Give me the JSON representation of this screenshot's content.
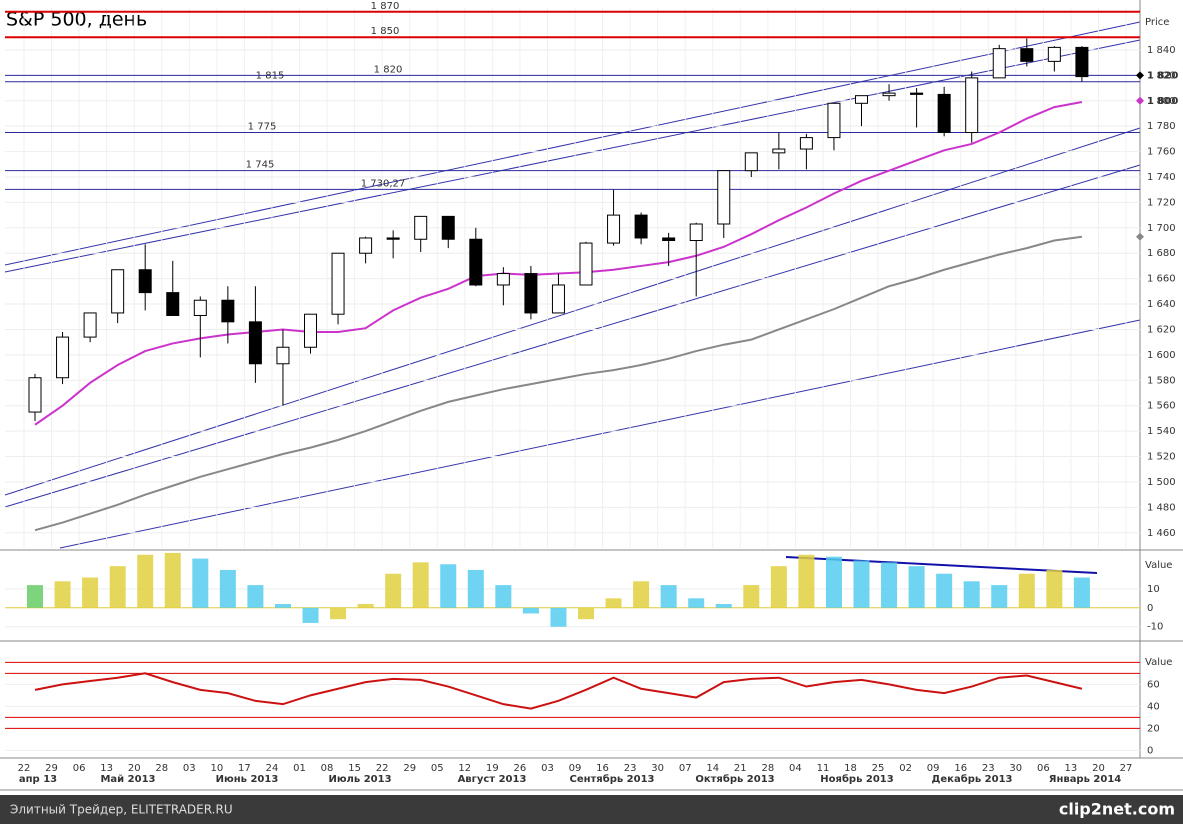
{
  "title": "S&P 500, день",
  "footer": {
    "source": "Элитный Трейдер, ELITETRADER.RU",
    "logo": "clip2net.com"
  },
  "chart_data": [
    {
      "type": "candlestick",
      "axis_label": "Price",
      "categories": [
        "22",
        "29",
        "06",
        "13",
        "20",
        "28",
        "03",
        "10",
        "17",
        "24",
        "01",
        "08",
        "15",
        "22",
        "29",
        "05",
        "12",
        "19",
        "26",
        "03",
        "09",
        "16",
        "23",
        "30",
        "07",
        "14",
        "21",
        "28",
        "04",
        "11",
        "18",
        "25",
        "02",
        "09",
        "16",
        "23",
        "30",
        "06",
        "13",
        "20",
        "27"
      ],
      "months": [
        "апр 13",
        "Май 2013",
        "Июнь 2013",
        "Июль 2013",
        "Август 2013",
        "Сентябрь 2013",
        "Октябрь 2013",
        "Ноябрь 2013",
        "Декабрь 2013",
        "Январь 2014"
      ],
      "open": [
        1555,
        1582,
        1614,
        1633,
        1667,
        1649,
        1631,
        1643,
        1626,
        1593,
        1606,
        1632,
        1680,
        1692,
        1691,
        1709,
        1691,
        1655,
        1664,
        1633,
        1655,
        1688,
        1710,
        1692,
        1690,
        1703,
        1745,
        1759,
        1762,
        1771,
        1798,
        1804,
        1806,
        1805,
        1775,
        1818,
        1841,
        1831,
        1842,
        null,
        null
      ],
      "high": [
        1585,
        1618,
        1633,
        1667,
        1687,
        1674,
        1646,
        1654,
        1654,
        1620,
        1632,
        1680,
        1693,
        1698,
        1709,
        1709,
        1700,
        1669,
        1670,
        1664,
        1689,
        1730,
        1712,
        1696,
        1704,
        1745,
        1759,
        1775,
        1774,
        1798,
        1803,
        1813,
        1810,
        1811,
        1823,
        1844,
        1849,
        1843,
        1843,
        null,
        null
      ],
      "low": [
        1548,
        1577,
        1610,
        1625,
        1635,
        1631,
        1598,
        1609,
        1578,
        1560,
        1601,
        1624,
        1672,
        1676,
        1681,
        1684,
        1654,
        1639,
        1628,
        1633,
        1655,
        1686,
        1687,
        1670,
        1646,
        1692,
        1740,
        1746,
        1746,
        1761,
        1780,
        1800,
        1779,
        1772,
        1767,
        1818,
        1827,
        1823,
        1815,
        null,
        null
      ],
      "close": [
        1582,
        1614,
        1633,
        1667,
        1649,
        1631,
        1643,
        1626,
        1593,
        1606,
        1632,
        1680,
        1692,
        1691,
        1709,
        1691,
        1655,
        1664,
        1633,
        1655,
        1688,
        1710,
        1692,
        1690,
        1703,
        1745,
        1759,
        1762,
        1771,
        1798,
        1804,
        1806,
        1805,
        1775,
        1818,
        1841,
        1831,
        1842,
        1819,
        null,
        null
      ],
      "series": [
        {
          "color": "#cc33cc",
          "values": [
            1545,
            1560,
            1578,
            1592,
            1603,
            1609,
            1613,
            1616,
            1618,
            1620,
            1618,
            1618,
            1621,
            1635,
            1645,
            1652,
            1662,
            1664,
            1663,
            1664,
            1665,
            1667,
            1670,
            1673,
            1678,
            1685,
            1695,
            1706,
            1716,
            1727,
            1737,
            1745,
            1753,
            1761,
            1766,
            1775,
            1786,
            1795,
            1799,
            null,
            null
          ]
        },
        {
          "color": "#888888",
          "values": [
            1462,
            1468,
            1475,
            1482,
            1490,
            1497,
            1504,
            1510,
            1516,
            1522,
            1527,
            1533,
            1540,
            1548,
            1556,
            1563,
            1568,
            1573,
            1577,
            1581,
            1585,
            1588,
            1592,
            1597,
            1603,
            1608,
            1612,
            1620,
            1628,
            1636,
            1645,
            1654,
            1660,
            1667,
            1673,
            1679,
            1684,
            1690,
            1693,
            null,
            null
          ]
        }
      ],
      "levels": [
        {
          "value": 1870,
          "label": "1 870",
          "color": "#dd0000"
        },
        {
          "value": 1850,
          "label": "1 850",
          "color": "#dd0000"
        },
        {
          "value": 1820,
          "label": "1 820",
          "color": "#2a2aa0"
        },
        {
          "value": 1815,
          "label": "1 815",
          "color": "#2a2aa0"
        },
        {
          "value": 1775,
          "label": "1 775",
          "color": "#2a2aa0"
        },
        {
          "value": 1745,
          "label": "1 745",
          "color": "#2a2aa0"
        },
        {
          "value": 1730.27,
          "label": "1 730,27",
          "color": "#2a2aa0"
        }
      ],
      "markers": [
        {
          "value": 1820,
          "label": "1 820",
          "color": "#000000"
        },
        {
          "value": 1800,
          "label": "1 800",
          "color": "#cc33cc"
        },
        {
          "value": 1693,
          "color": "#888888"
        }
      ],
      "ylim": [
        1448,
        1873
      ],
      "yticks": [
        {
          "value": 1460,
          "label": "1 460"
        },
        {
          "value": 1480,
          "label": "1 480"
        },
        {
          "value": 1500,
          "label": "1 500"
        },
        {
          "value": 1520,
          "label": "1 520"
        },
        {
          "value": 1540,
          "label": "1 540"
        },
        {
          "value": 1560,
          "label": "1 560"
        },
        {
          "value": 1580,
          "label": "1 580"
        },
        {
          "value": 1600,
          "label": "1 600"
        },
        {
          "value": 1620,
          "label": "1 620"
        },
        {
          "value": 1640,
          "label": "1 640"
        },
        {
          "value": 1660,
          "label": "1 660"
        },
        {
          "value": 1680,
          "label": "1 680"
        },
        {
          "value": 1700,
          "label": "1 700"
        },
        {
          "value": 1720,
          "label": "1 720"
        },
        {
          "value": 1740,
          "label": "1 740"
        },
        {
          "value": 1760,
          "label": "1 760"
        },
        {
          "value": 1780,
          "label": "1 780"
        },
        {
          "value": 1800,
          "label": "1 800"
        },
        {
          "value": 1820,
          "label": "1 820"
        },
        {
          "value": 1840,
          "label": "1 840"
        }
      ]
    },
    {
      "type": "histogram",
      "axis_label": "Value",
      "color": "#66cc66",
      "rise_color": "#e0d040",
      "fall_color": "#55ccee",
      "values": [
        12,
        14,
        16,
        22,
        28,
        29,
        26,
        20,
        12,
        2,
        -8,
        -6,
        2,
        18,
        24,
        23,
        20,
        12,
        -3,
        -10,
        -6,
        5,
        14,
        12,
        5,
        2,
        12,
        22,
        28,
        27,
        25,
        24,
        22,
        18,
        14,
        12,
        18,
        20,
        16,
        null,
        null
      ],
      "ylim": [
        -17,
        30
      ],
      "yticks": [
        -10,
        0,
        10
      ]
    },
    {
      "type": "line",
      "axis_label": "Value",
      "color": "#cc1111",
      "values": [
        55,
        60,
        63,
        66,
        70,
        62,
        55,
        52,
        45,
        42,
        50,
        56,
        62,
        65,
        64,
        58,
        50,
        42,
        38,
        45,
        55,
        66,
        56,
        52,
        48,
        62,
        65,
        66,
        58,
        62,
        64,
        60,
        55,
        52,
        58,
        66,
        68,
        62,
        56,
        null,
        null
      ],
      "levels": [
        80,
        70,
        30,
        20
      ],
      "ylim": [
        -6,
        93
      ],
      "yticks": [
        0,
        20,
        40,
        60
      ]
    }
  ]
}
